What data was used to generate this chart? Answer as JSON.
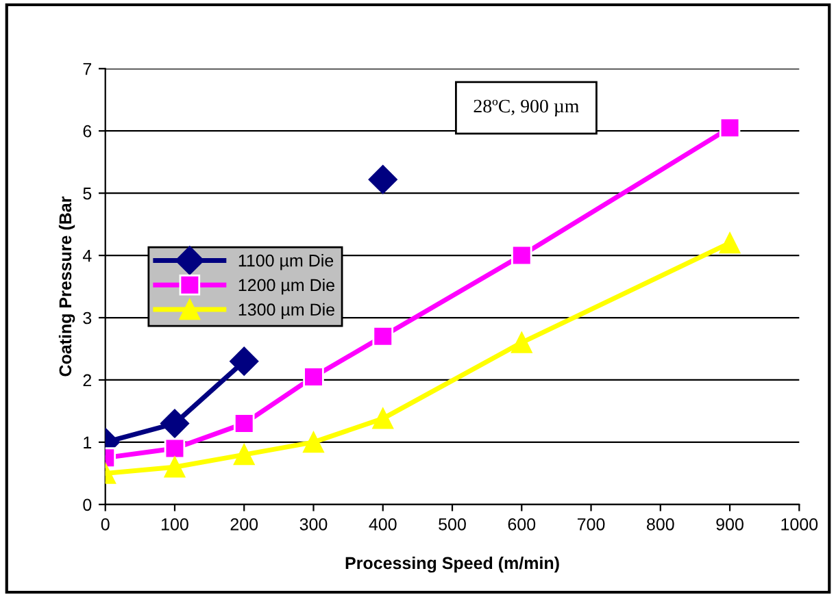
{
  "chart_data": {
    "type": "line",
    "xlabel": "Processing Speed (m/min)",
    "ylabel": "Coating Pressure (Bar",
    "annotations": [
      "28ºC, 900 µm"
    ],
    "x": [
      0,
      100,
      200,
      300,
      400,
      600,
      900
    ],
    "series": [
      {
        "name": "1100 µm Die",
        "color": "#000080",
        "marker": "diamond",
        "values": [
          1.0,
          1.3,
          2.3,
          null,
          5.22,
          null,
          null
        ]
      },
      {
        "name": "1200 µm Die",
        "color": "#ff00ff",
        "marker": "square",
        "values": [
          0.75,
          0.9,
          1.3,
          2.05,
          2.7,
          4.0,
          6.05
        ]
      },
      {
        "name": "1300 µm Die",
        "color": "#ffff00",
        "marker": "triangle",
        "values": [
          0.5,
          0.6,
          0.8,
          1.0,
          1.38,
          2.6,
          4.2
        ]
      }
    ],
    "xlim": [
      0,
      1000
    ],
    "xticks": [
      0,
      100,
      200,
      300,
      400,
      500,
      600,
      700,
      800,
      900,
      1000
    ],
    "ylim": [
      0,
      7
    ],
    "yticks": [
      0,
      1,
      2,
      3,
      4,
      5,
      6,
      7
    ],
    "grid": "y",
    "legend": "left"
  }
}
